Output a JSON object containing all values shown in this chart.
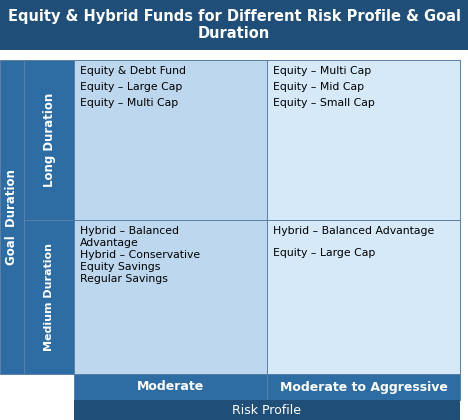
{
  "title": "Equity & Hybrid Funds for Different Risk Profile & Goal\nDuration",
  "title_bg": "#1F4E79",
  "title_color": "#FFFFFF",
  "title_fontsize": 10.5,
  "header_bg": "#2E6DA4",
  "header_color": "#FFFFFF",
  "header_fontsize": 9,
  "side_label_bg": "#2E6DA4",
  "side_label_color": "#FFFFFF",
  "side_label_fontsize": 8.5,
  "cell_bg_moderate": "#BDD7EE",
  "cell_bg_aggressive": "#D6E9F8",
  "cell_text_color": "#000000",
  "cell_fontsize": 7.8,
  "bottom_row_bg": "#1F4E79",
  "bottom_row_color": "#FFFFFF",
  "outer_bg": "#FFFFFF",
  "col_headers": [
    "Moderate",
    "Moderate to Aggressive"
  ],
  "goal_duration_label": "Goal  Duration",
  "long_label": "Long Duration",
  "medium_label": "Medium Duration",
  "risk_profile_label": "Risk Profile",
  "long_moderate": [
    "Equity & Debt Fund",
    "Equity – Large Cap",
    "Equity – Multi Cap"
  ],
  "long_aggressive": [
    "Equity – Multi Cap",
    "Equity – Mid Cap",
    "Equity – Small Cap"
  ],
  "medium_moderate": [
    "Hybrid – Balanced\nAdvantage",
    "Hybrid – Conservative\nEquity Savings",
    "Regular Savings"
  ],
  "medium_aggressive": [
    "Hybrid – Balanced Advantage",
    "Equity – Large Cap"
  ]
}
